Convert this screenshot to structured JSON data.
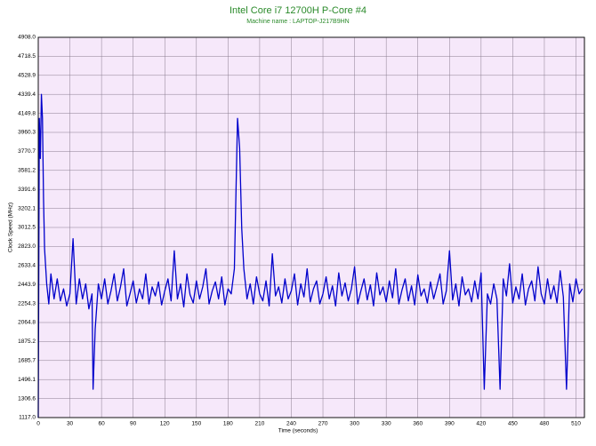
{
  "chart_data": {
    "type": "line",
    "title": "Intel Core i7 12700H P-Core #4",
    "subtitle": "Machine name : LAPTOP-J217B9HN",
    "x_label": "Time (seconds)",
    "y_label": "Clock Speed (MHz)",
    "color": "#0000cc",
    "background": "#f6e8fa",
    "grid": true,
    "xlim": [
      0,
      518
    ],
    "ylim": [
      1117,
      4908
    ],
    "xticks": [
      0,
      30,
      60,
      90,
      120,
      150,
      180,
      210,
      240,
      270,
      300,
      330,
      360,
      390,
      420,
      450,
      480,
      510
    ],
    "yticks": [
      {
        "value": 1117,
        "label": "1117.0"
      },
      1306.6,
      1496.1,
      1685.7,
      1875.2,
      2064.8,
      2254.3,
      2443.9,
      2633.4,
      {
        "value": 2823,
        "label": "2823.0"
      },
      3012.5,
      3202.1,
      3391.6,
      3581.2,
      3770.7,
      3960.3,
      4149.8,
      4339.4,
      4528.9,
      4718.5,
      {
        "value": 4908,
        "label": "4908.0"
      }
    ],
    "x": [
      0,
      1,
      2,
      3,
      4,
      5,
      6,
      8,
      10,
      12,
      15,
      18,
      21,
      24,
      27,
      30,
      33,
      36,
      39,
      42,
      45,
      48,
      51,
      52,
      54,
      57,
      60,
      63,
      66,
      69,
      72,
      75,
      78,
      81,
      84,
      87,
      90,
      93,
      96,
      99,
      102,
      105,
      108,
      111,
      114,
      117,
      120,
      123,
      126,
      129,
      132,
      135,
      138,
      141,
      144,
      147,
      150,
      153,
      156,
      159,
      162,
      165,
      168,
      171,
      174,
      177,
      180,
      183,
      186,
      189,
      191,
      193,
      195,
      198,
      201,
      204,
      207,
      210,
      213,
      216,
      219,
      222,
      225,
      228,
      231,
      234,
      237,
      240,
      243,
      246,
      249,
      252,
      255,
      258,
      261,
      264,
      267,
      270,
      273,
      276,
      279,
      282,
      285,
      288,
      291,
      294,
      297,
      300,
      303,
      306,
      309,
      312,
      315,
      318,
      321,
      324,
      327,
      330,
      333,
      336,
      339,
      342,
      345,
      348,
      351,
      354,
      357,
      360,
      363,
      366,
      369,
      372,
      375,
      378,
      381,
      384,
      387,
      390,
      393,
      396,
      399,
      402,
      405,
      408,
      411,
      414,
      417,
      420,
      423,
      426,
      429,
      432,
      435,
      438,
      441,
      444,
      447,
      450,
      453,
      456,
      459,
      462,
      465,
      468,
      471,
      474,
      477,
      480,
      483,
      486,
      489,
      492,
      495,
      498,
      501,
      504,
      507,
      510,
      513,
      516
    ],
    "values": [
      1117,
      4100,
      3700,
      4339,
      4100,
      3300,
      2800,
      2450,
      2250,
      2550,
      2300,
      2500,
      2280,
      2400,
      2230,
      2350,
      2900,
      2250,
      2500,
      2300,
      2450,
      2200,
      2350,
      1400,
      2000,
      2450,
      2300,
      2500,
      2250,
      2380,
      2550,
      2280,
      2420,
      2600,
      2230,
      2350,
      2480,
      2260,
      2400,
      2300,
      2550,
      2250,
      2420,
      2330,
      2470,
      2240,
      2380,
      2500,
      2280,
      2780,
      2300,
      2450,
      2220,
      2550,
      2340,
      2260,
      2480,
      2300,
      2420,
      2600,
      2250,
      2380,
      2470,
      2300,
      2520,
      2240,
      2400,
      2350,
      2600,
      4100,
      3800,
      3000,
      2600,
      2300,
      2450,
      2250,
      2520,
      2350,
      2280,
      2480,
      2230,
      2750,
      2330,
      2420,
      2260,
      2500,
      2300,
      2380,
      2550,
      2240,
      2450,
      2320,
      2600,
      2270,
      2400,
      2480,
      2250,
      2350,
      2520,
      2300,
      2430,
      2230,
      2560,
      2330,
      2460,
      2280,
      2400,
      2620,
      2250,
      2380,
      2500,
      2290,
      2440,
      2230,
      2560,
      2340,
      2420,
      2270,
      2480,
      2310,
      2600,
      2250,
      2390,
      2500,
      2280,
      2430,
      2240,
      2540,
      2330,
      2400,
      2260,
      2470,
      2300,
      2420,
      2550,
      2250,
      2380,
      2780,
      2290,
      2450,
      2230,
      2520,
      2340,
      2400,
      2270,
      2480,
      2300,
      2560,
      1400,
      2350,
      2250,
      2450,
      2300,
      1400,
      2500,
      2330,
      2650,
      2260,
      2420,
      2300,
      2550,
      2240,
      2400,
      2480,
      2280,
      2620,
      2350,
      2250,
      2500,
      2300,
      2430,
      2260,
      2580,
      2320,
      1400,
      2450,
      2270,
      2500,
      2350,
      2400
    ]
  }
}
